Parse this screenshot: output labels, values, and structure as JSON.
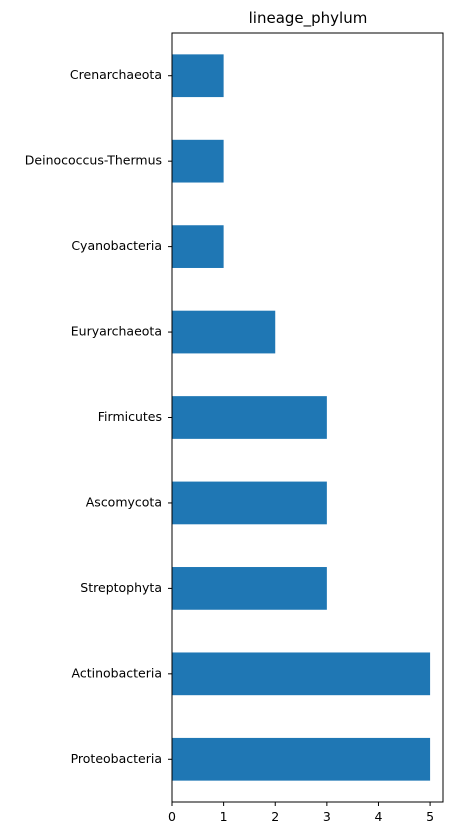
{
  "chart_data": {
    "type": "bar",
    "orientation": "horizontal",
    "title": "lineage_phylum",
    "xlabel": "",
    "ylabel": "",
    "categories": [
      "Crenarchaeota",
      "Deinococcus-Thermus",
      "Cyanobacteria",
      "Euryarchaeota",
      "Firmicutes",
      "Ascomycota",
      "Streptophyta",
      "Actinobacteria",
      "Proteobacteria"
    ],
    "values": [
      1,
      1,
      1,
      2,
      3,
      3,
      3,
      5,
      5
    ],
    "xlim": [
      0,
      5.25
    ],
    "xticks": [
      "0",
      "1",
      "2",
      "3",
      "4",
      "5"
    ],
    "bar_color": "#1f77b4",
    "grid": false,
    "legend": "none"
  }
}
